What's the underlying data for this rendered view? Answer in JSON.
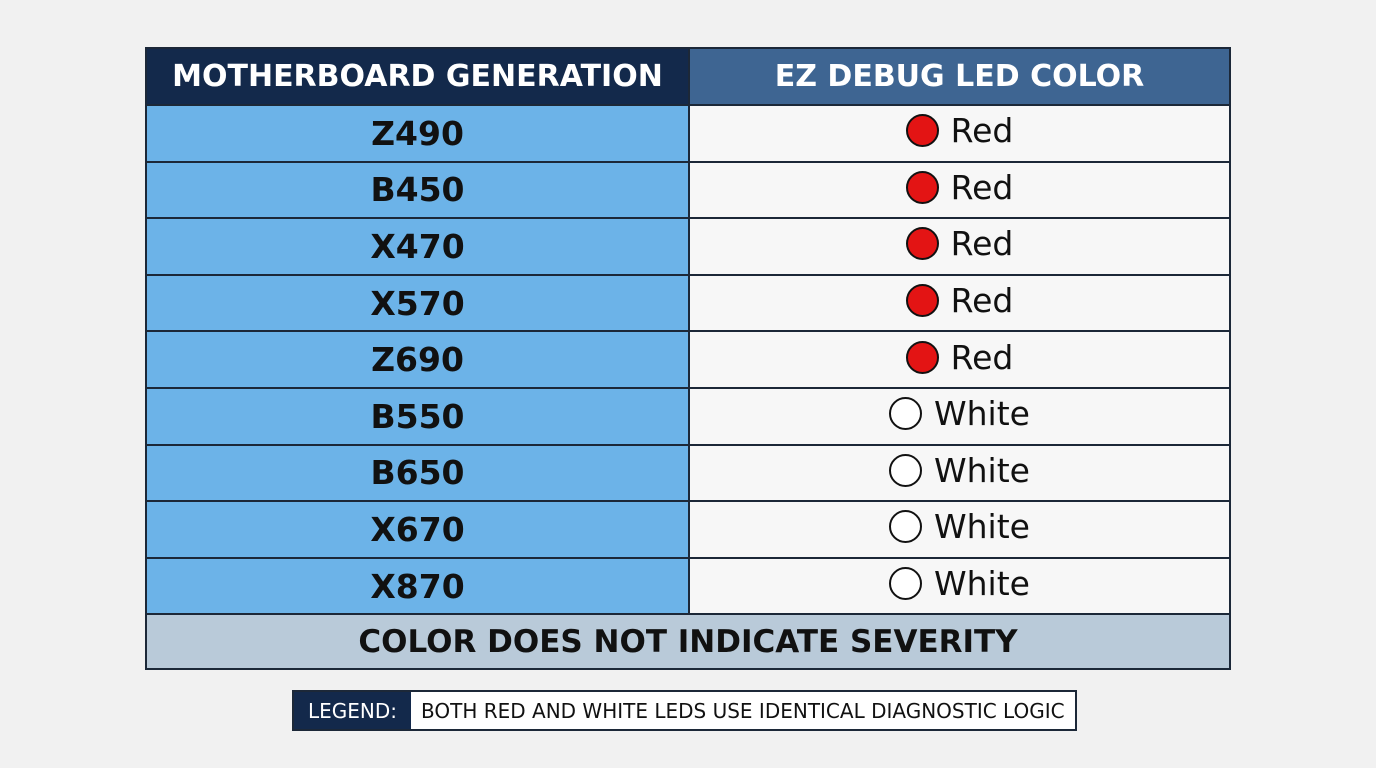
{
  "table": {
    "headers": [
      "MOTHERBOARD GENERATION",
      "EZ DEBUG LED COLOR"
    ],
    "rows": [
      [
        "Z490",
        "Red"
      ],
      [
        "B450",
        "Red"
      ],
      [
        "X470",
        "Red"
      ],
      [
        "X570",
        "Red"
      ],
      [
        "Z690",
        "Red"
      ],
      [
        "B550",
        "White"
      ],
      [
        "B650",
        "White"
      ],
      [
        "X670",
        "White"
      ],
      [
        "X870",
        "White"
      ]
    ],
    "footer": "COLOR DOES NOT INDICATE SEVERITY"
  },
  "legend": {
    "label": "LEGEND:",
    "text": "BOTH RED AND WHITE LEDS USE IDENTICAL DIAGNOSTIC LOGIC"
  }
}
